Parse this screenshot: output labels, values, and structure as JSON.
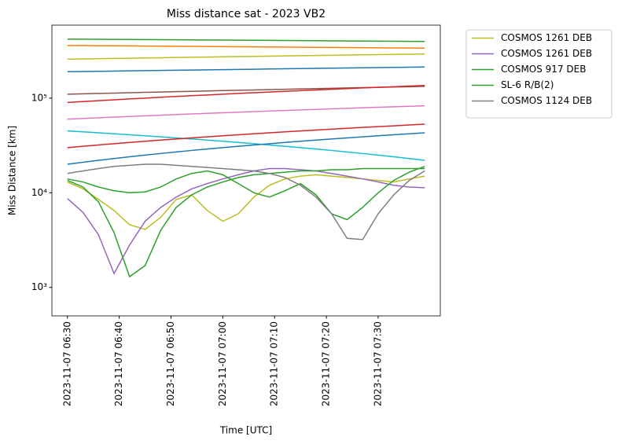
{
  "chart_data": {
    "type": "line",
    "title": "Miss distance sat - 2023 VB2",
    "xlabel": "Time [UTC]",
    "ylabel": "Miss Distance [km]",
    "log_y": true,
    "grid": false,
    "legend": "outside upper right",
    "x": [
      "2023-11-07 06:30",
      "2023-11-07 06:33",
      "2023-11-07 06:36",
      "2023-11-07 06:39",
      "2023-11-07 06:42",
      "2023-11-07 06:45",
      "2023-11-07 06:48",
      "2023-11-07 06:51",
      "2023-11-07 06:54",
      "2023-11-07 06:57",
      "2023-11-07 07:00",
      "2023-11-07 07:03",
      "2023-11-07 07:06",
      "2023-11-07 07:09",
      "2023-11-07 07:12",
      "2023-11-07 07:15",
      "2023-11-07 07:18",
      "2023-11-07 07:21",
      "2023-11-07 07:24",
      "2023-11-07 07:27",
      "2023-11-07 07:30",
      "2023-11-07 07:33",
      "2023-11-07 07:36",
      "2023-11-07 07:39"
    ],
    "xlim": [
      "2023-11-07 06:27",
      "2023-11-07 07:42"
    ],
    "xticks": [
      "2023-11-07 06:30",
      "2023-11-07 06:40",
      "2023-11-07 06:50",
      "2023-11-07 07:00",
      "2023-11-07 07:10",
      "2023-11-07 07:20",
      "2023-11-07 07:30"
    ],
    "ylim": [
      500,
      590000
    ],
    "yticks": [
      {
        "value": 1000,
        "label": "10³"
      },
      {
        "value": 10000,
        "label": "10⁴"
      },
      {
        "value": 100000,
        "label": "10⁵"
      }
    ],
    "series": [
      {
        "color": "#2ca02c",
        "values": [
          420000,
          419000,
          418000,
          417000,
          416000,
          415000,
          414000,
          413000,
          412000,
          411000,
          410000,
          409000,
          408000,
          407000,
          406000,
          405000,
          404000,
          403000,
          402000,
          401000,
          400000,
          399000,
          398000,
          397000
        ]
      },
      {
        "color": "#ff7f0e",
        "values": [
          360000,
          359000,
          358000,
          357000,
          356000,
          355000,
          354000,
          353000,
          352000,
          351000,
          350000,
          349000,
          348000,
          347000,
          346000,
          345000,
          344000,
          343000,
          342000,
          341000,
          340000,
          339000,
          338000,
          337000
        ]
      },
      {
        "color": "#bcbd22",
        "values": [
          258000,
          259500,
          261000,
          262500,
          264000,
          265500,
          267000,
          268500,
          270000,
          271500,
          273000,
          274500,
          276000,
          277500,
          279000,
          280500,
          282000,
          283500,
          285000,
          286500,
          288000,
          289500,
          291000,
          292500
        ]
      },
      {
        "color": "#1f77b4",
        "values": [
          190000,
          191000,
          192000,
          193000,
          194000,
          195000,
          196000,
          197000,
          198000,
          199000,
          200000,
          201000,
          202000,
          203000,
          204000,
          205000,
          206000,
          207000,
          208000,
          209000,
          210000,
          211000,
          212000,
          213000
        ]
      },
      {
        "color": "#8c564b",
        "values": [
          110000,
          111000,
          112000,
          113000,
          114000,
          115000,
          116000,
          117000,
          118000,
          119000,
          120000,
          121000,
          122000,
          123000,
          124000,
          125000,
          126000,
          127000,
          128000,
          129000,
          130000,
          131000,
          132000,
          133000
        ]
      },
      {
        "color": "#d62728",
        "values": [
          90000,
          92000,
          94000,
          96000,
          98000,
          100000,
          102000,
          104000,
          106000,
          108000,
          110000,
          112000,
          114000,
          116000,
          118000,
          120000,
          122000,
          124000,
          126000,
          128000,
          130000,
          132000,
          134000,
          136000
        ]
      },
      {
        "color": "#e377c2",
        "values": [
          60000,
          61000,
          62000,
          63000,
          64000,
          65000,
          66000,
          67000,
          68000,
          69000,
          70000,
          71000,
          72000,
          73000,
          74000,
          75000,
          76000,
          77000,
          78000,
          79000,
          80000,
          81000,
          82000,
          83000
        ]
      },
      {
        "color": "#17becf",
        "values": [
          45000,
          44000,
          43000,
          42000,
          41000,
          40000,
          39000,
          38000,
          37000,
          36000,
          35000,
          34000,
          33000,
          32000,
          31000,
          30000,
          29000,
          28000,
          27000,
          26000,
          25000,
          24000,
          23000,
          22000
        ]
      },
      {
        "color": "#d62728",
        "values": [
          30000,
          31000,
          32000,
          33000,
          34000,
          35000,
          36000,
          37000,
          38000,
          39000,
          40000,
          41000,
          42000,
          43000,
          44000,
          45000,
          46000,
          47000,
          48000,
          49000,
          50000,
          51000,
          52000,
          53000
        ]
      },
      {
        "color": "#1f77b4",
        "values": [
          20000,
          21000,
          22000,
          23000,
          24000,
          25000,
          26000,
          27000,
          28000,
          29000,
          30000,
          31000,
          32000,
          33000,
          34000,
          35000,
          36000,
          37000,
          38000,
          39000,
          40000,
          41000,
          42000,
          43000
        ]
      },
      {
        "name": "COSMOS 1261 DEB",
        "color": "#bcbd22",
        "values": [
          13000,
          11000,
          8500,
          6500,
          4600,
          4100,
          5500,
          8500,
          9500,
          6500,
          5000,
          6000,
          9000,
          12000,
          14000,
          15000,
          15500,
          15000,
          14500,
          14000,
          13500,
          13000,
          14000,
          15000
        ]
      },
      {
        "name": "COSMOS 1261 DEB",
        "color": "#9467bd",
        "values": [
          8700,
          6200,
          3600,
          1400,
          2800,
          5000,
          7000,
          9000,
          11000,
          12500,
          14000,
          15500,
          17000,
          18000,
          18000,
          17500,
          17000,
          16000,
          15000,
          14000,
          13000,
          12000,
          11500,
          11300
        ]
      },
      {
        "name": "COSMOS 917 DEB",
        "color": "#2ca02c",
        "values": [
          13500,
          11500,
          8000,
          3800,
          1300,
          1700,
          4000,
          7000,
          9500,
          11500,
          13000,
          14500,
          15500,
          16000,
          16500,
          17000,
          17000,
          17500,
          17500,
          18000,
          18000,
          18000,
          18000,
          18000
        ]
      },
      {
        "name": "SL-6 R/B(2)",
        "color": "#2ca02c",
        "values": [
          14000,
          13000,
          11500,
          10500,
          10000,
          10200,
          11500,
          14000,
          16000,
          17000,
          15500,
          12500,
          10000,
          9000,
          10500,
          12500,
          9500,
          6000,
          5200,
          7000,
          10000,
          13500,
          16500,
          19000
        ]
      },
      {
        "name": "COSMOS 1124 DEB",
        "color": "#7f7f7f",
        "values": [
          16000,
          17000,
          18000,
          19000,
          19500,
          20000,
          20000,
          19500,
          19000,
          18500,
          18000,
          17500,
          17000,
          16000,
          14500,
          12000,
          9000,
          6000,
          3300,
          3200,
          6000,
          9500,
          13500,
          17000
        ]
      }
    ]
  }
}
